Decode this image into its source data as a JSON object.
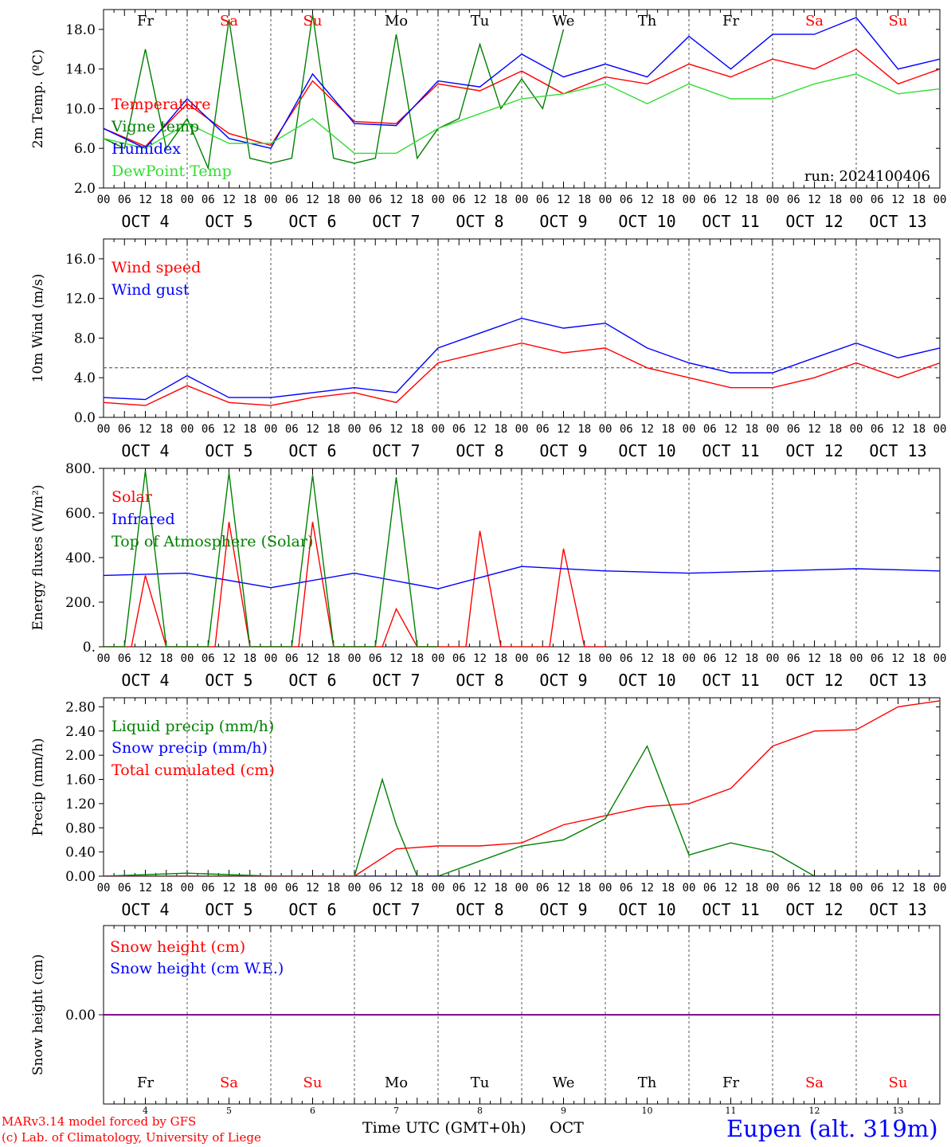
{
  "colors": {
    "red": "#ff0000",
    "blue": "#0000ff",
    "green": "#008000",
    "lightgreen": "#33dd33",
    "purple": "#800080",
    "axis": "#000000"
  },
  "days": [
    {
      "abbr": "Fr",
      "date": "OCT  4",
      "num": "4",
      "weekend": false
    },
    {
      "abbr": "Sa",
      "date": "OCT  5",
      "num": "5",
      "weekend": true
    },
    {
      "abbr": "Su",
      "date": "OCT  6",
      "num": "6",
      "weekend": true
    },
    {
      "abbr": "Mo",
      "date": "OCT  7",
      "num": "7",
      "weekend": false
    },
    {
      "abbr": "Tu",
      "date": "OCT  8",
      "num": "8",
      "weekend": false
    },
    {
      "abbr": "We",
      "date": "OCT  9",
      "num": "9",
      "weekend": false
    },
    {
      "abbr": "Th",
      "date": "OCT 10",
      "num": "10",
      "weekend": false
    },
    {
      "abbr": "Fr",
      "date": "OCT 11",
      "num": "11",
      "weekend": false
    },
    {
      "abbr": "Sa",
      "date": "OCT 12",
      "num": "12",
      "weekend": true
    },
    {
      "abbr": "Su",
      "date": "OCT 13",
      "num": "13",
      "weekend": true
    }
  ],
  "hour_labels": [
    "00",
    "06",
    "12",
    "18"
  ],
  "run_label": "run: 2024100406",
  "footer": {
    "model": "MARv3.14 model forced by GFS",
    "credit": "(c) Lab. of Climatology, University of Liege",
    "xlabel": "Time UTC (GMT+0h)",
    "month": "OCT",
    "station": "Eupen (alt. 319m)"
  },
  "chart_data": [
    {
      "type": "line",
      "ylabel": "2m Temp. (ºC)",
      "ylim": [
        2,
        20
      ],
      "yticks": [
        2,
        6,
        10,
        14,
        18
      ],
      "ytick_labels": [
        "2.0",
        "6.0",
        "10.0",
        "14.0",
        "18.0"
      ],
      "series": [
        {
          "name": "Temperature",
          "color": "#ff0000",
          "x": [
            0,
            12,
            24,
            36,
            48,
            60,
            72,
            84,
            96,
            108,
            120,
            132,
            144,
            156,
            168,
            180,
            192,
            204,
            216,
            228,
            240
          ],
          "y": [
            8,
            6.2,
            10.5,
            7.5,
            6.3,
            12.8,
            8.7,
            8.5,
            12.5,
            11.8,
            13.8,
            11.5,
            13.2,
            12.5,
            14.5,
            13.2,
            15.0,
            14.0,
            16.0,
            12.5,
            14.0
          ]
        },
        {
          "name": "Vigne temp",
          "color": "#008000",
          "x": [
            0,
            6,
            12,
            18,
            24,
            30,
            36,
            42,
            48,
            54,
            60,
            66,
            72,
            78,
            84,
            90,
            96,
            102,
            108,
            114,
            120,
            126,
            132
          ],
          "y": [
            7,
            6,
            16,
            6,
            9,
            4,
            19,
            5,
            4.5,
            5,
            19.5,
            5,
            4.5,
            5,
            17.5,
            5,
            8,
            9,
            16.5,
            10,
            13,
            10,
            18
          ]
        },
        {
          "name": "Humidex",
          "color": "#0000ff",
          "x": [
            0,
            12,
            24,
            36,
            48,
            60,
            72,
            84,
            96,
            108,
            120,
            132,
            144,
            156,
            168,
            180,
            192,
            204,
            216,
            228,
            240
          ],
          "y": [
            8,
            6,
            11,
            7,
            6,
            13.5,
            8.5,
            8.3,
            12.8,
            12.2,
            15.5,
            13.2,
            14.5,
            13.2,
            17.3,
            14.0,
            17.5,
            17.5,
            19.2,
            14.0,
            15.0
          ]
        },
        {
          "name": "DewPoint Temp",
          "color": "#33dd33",
          "x": [
            0,
            12,
            24,
            36,
            48,
            60,
            72,
            84,
            96,
            108,
            120,
            132,
            144,
            156,
            168,
            180,
            192,
            204,
            216,
            228,
            240
          ],
          "y": [
            7,
            6,
            8.5,
            6.5,
            6.5,
            9,
            5.5,
            5.5,
            8,
            9.5,
            11,
            11.5,
            12.5,
            10.5,
            12.5,
            11,
            11,
            12.5,
            13.5,
            11.5,
            12
          ]
        }
      ]
    },
    {
      "type": "line",
      "ylabel": "10m Wind (m/s)",
      "ylim": [
        0,
        18
      ],
      "yticks": [
        0,
        4,
        8,
        12,
        16
      ],
      "ytick_labels": [
        "0.0",
        "4.0",
        "8.0",
        "12.0",
        "16.0"
      ],
      "reference_line": 5,
      "series": [
        {
          "name": "Wind speed",
          "color": "#ff0000",
          "x": [
            0,
            12,
            24,
            36,
            48,
            60,
            72,
            84,
            96,
            108,
            120,
            132,
            144,
            156,
            168,
            180,
            192,
            204,
            216,
            228,
            240
          ],
          "y": [
            1.5,
            1.2,
            3.2,
            1.5,
            1.2,
            2,
            2.5,
            1.5,
            5.5,
            6.5,
            7.5,
            6.5,
            7,
            5,
            4,
            3,
            3,
            4,
            5.5,
            4,
            5.5
          ]
        },
        {
          "name": "Wind gust",
          "color": "#0000ff",
          "x": [
            0,
            12,
            24,
            36,
            48,
            60,
            72,
            84,
            96,
            108,
            120,
            132,
            144,
            156,
            168,
            180,
            192,
            204,
            216,
            228,
            240
          ],
          "y": [
            2,
            1.8,
            4.2,
            2,
            2,
            2.5,
            3,
            2.5,
            7,
            8.5,
            10,
            9,
            9.5,
            7,
            5.5,
            4.5,
            4.5,
            6,
            7.5,
            6,
            7
          ]
        }
      ]
    },
    {
      "type": "line",
      "ylabel": "Energy fluxes (W/m²)",
      "ylim": [
        0,
        800
      ],
      "yticks": [
        0,
        200,
        400,
        600,
        800
      ],
      "ytick_labels": [
        "0.",
        "200.",
        "400.",
        "600.",
        "800."
      ],
      "series": [
        {
          "name": "Solar",
          "color": "#ff0000",
          "x": [
            0,
            8,
            12,
            18,
            24,
            32,
            36,
            42,
            48,
            56,
            60,
            66,
            72,
            80,
            84,
            90,
            96,
            104,
            108,
            114,
            120,
            128,
            132,
            138,
            144
          ],
          "y": [
            0,
            0,
            320,
            0,
            0,
            0,
            560,
            0,
            0,
            0,
            560,
            0,
            0,
            0,
            170,
            0,
            0,
            0,
            520,
            0,
            0,
            0,
            440,
            0,
            0
          ]
        },
        {
          "name": "Infrared",
          "color": "#0000ff",
          "x": [
            0,
            24,
            48,
            72,
            96,
            120,
            144,
            168,
            192,
            216,
            240
          ],
          "y": [
            320,
            330,
            265,
            330,
            260,
            360,
            340,
            330,
            340,
            350,
            340
          ]
        },
        {
          "name": "Top of Atmosphere (Solar)",
          "color": "#008000",
          "x": [
            0,
            6,
            12,
            18,
            24,
            30,
            36,
            42,
            48,
            54,
            60,
            66,
            72,
            78,
            84,
            90,
            96
          ],
          "y": [
            0,
            0,
            790,
            0,
            0,
            0,
            780,
            0,
            0,
            0,
            770,
            0,
            0,
            0,
            760,
            0,
            0
          ]
        }
      ]
    },
    {
      "type": "line",
      "ylabel": "Precip (mm/h)",
      "ylim": [
        0,
        2.95
      ],
      "yticks": [
        0,
        0.4,
        0.8,
        1.2,
        1.6,
        2.0,
        2.4,
        2.8
      ],
      "ytick_labels": [
        "0.00",
        "0.40",
        "0.80",
        "1.20",
        "1.60",
        "2.00",
        "2.40",
        "2.80"
      ],
      "series": [
        {
          "name": "Liquid precip (mm/h)",
          "color": "#008000",
          "x": [
            0,
            24,
            48,
            72,
            80,
            84,
            90,
            96,
            120,
            132,
            144,
            156,
            168,
            180,
            192,
            204,
            216
          ],
          "y": [
            0,
            0.05,
            0,
            0,
            1.6,
            0.85,
            0,
            0,
            0.5,
            0.6,
            0.95,
            2.15,
            0.35,
            0.55,
            0.4,
            0,
            0
          ]
        },
        {
          "name": "Snow precip (mm/h)",
          "color": "#0000ff",
          "x": [
            0,
            240
          ],
          "y": [
            0,
            0
          ]
        },
        {
          "name": "Total cumulated (cm)",
          "color": "#ff0000",
          "x": [
            0,
            72,
            84,
            96,
            108,
            120,
            132,
            144,
            156,
            168,
            180,
            192,
            204,
            216,
            228,
            240
          ],
          "y": [
            0,
            0,
            0.45,
            0.5,
            0.5,
            0.55,
            0.85,
            1.0,
            1.15,
            1.2,
            1.45,
            2.15,
            2.4,
            2.42,
            2.8,
            2.9
          ]
        }
      ]
    },
    {
      "type": "line",
      "ylabel": "Snow height (cm)",
      "ylim": [
        -1,
        1
      ],
      "yticks": [
        0
      ],
      "ytick_labels": [
        "0.00"
      ],
      "series": [
        {
          "name": "Snow height (cm)",
          "color": "#ff0000",
          "x": [
            0,
            240
          ],
          "y": [
            0,
            0
          ]
        },
        {
          "name": "Snow height (cm W.E.)",
          "color": "#0000ff",
          "x": [
            0,
            240
          ],
          "y": [
            0,
            0
          ]
        }
      ]
    }
  ]
}
